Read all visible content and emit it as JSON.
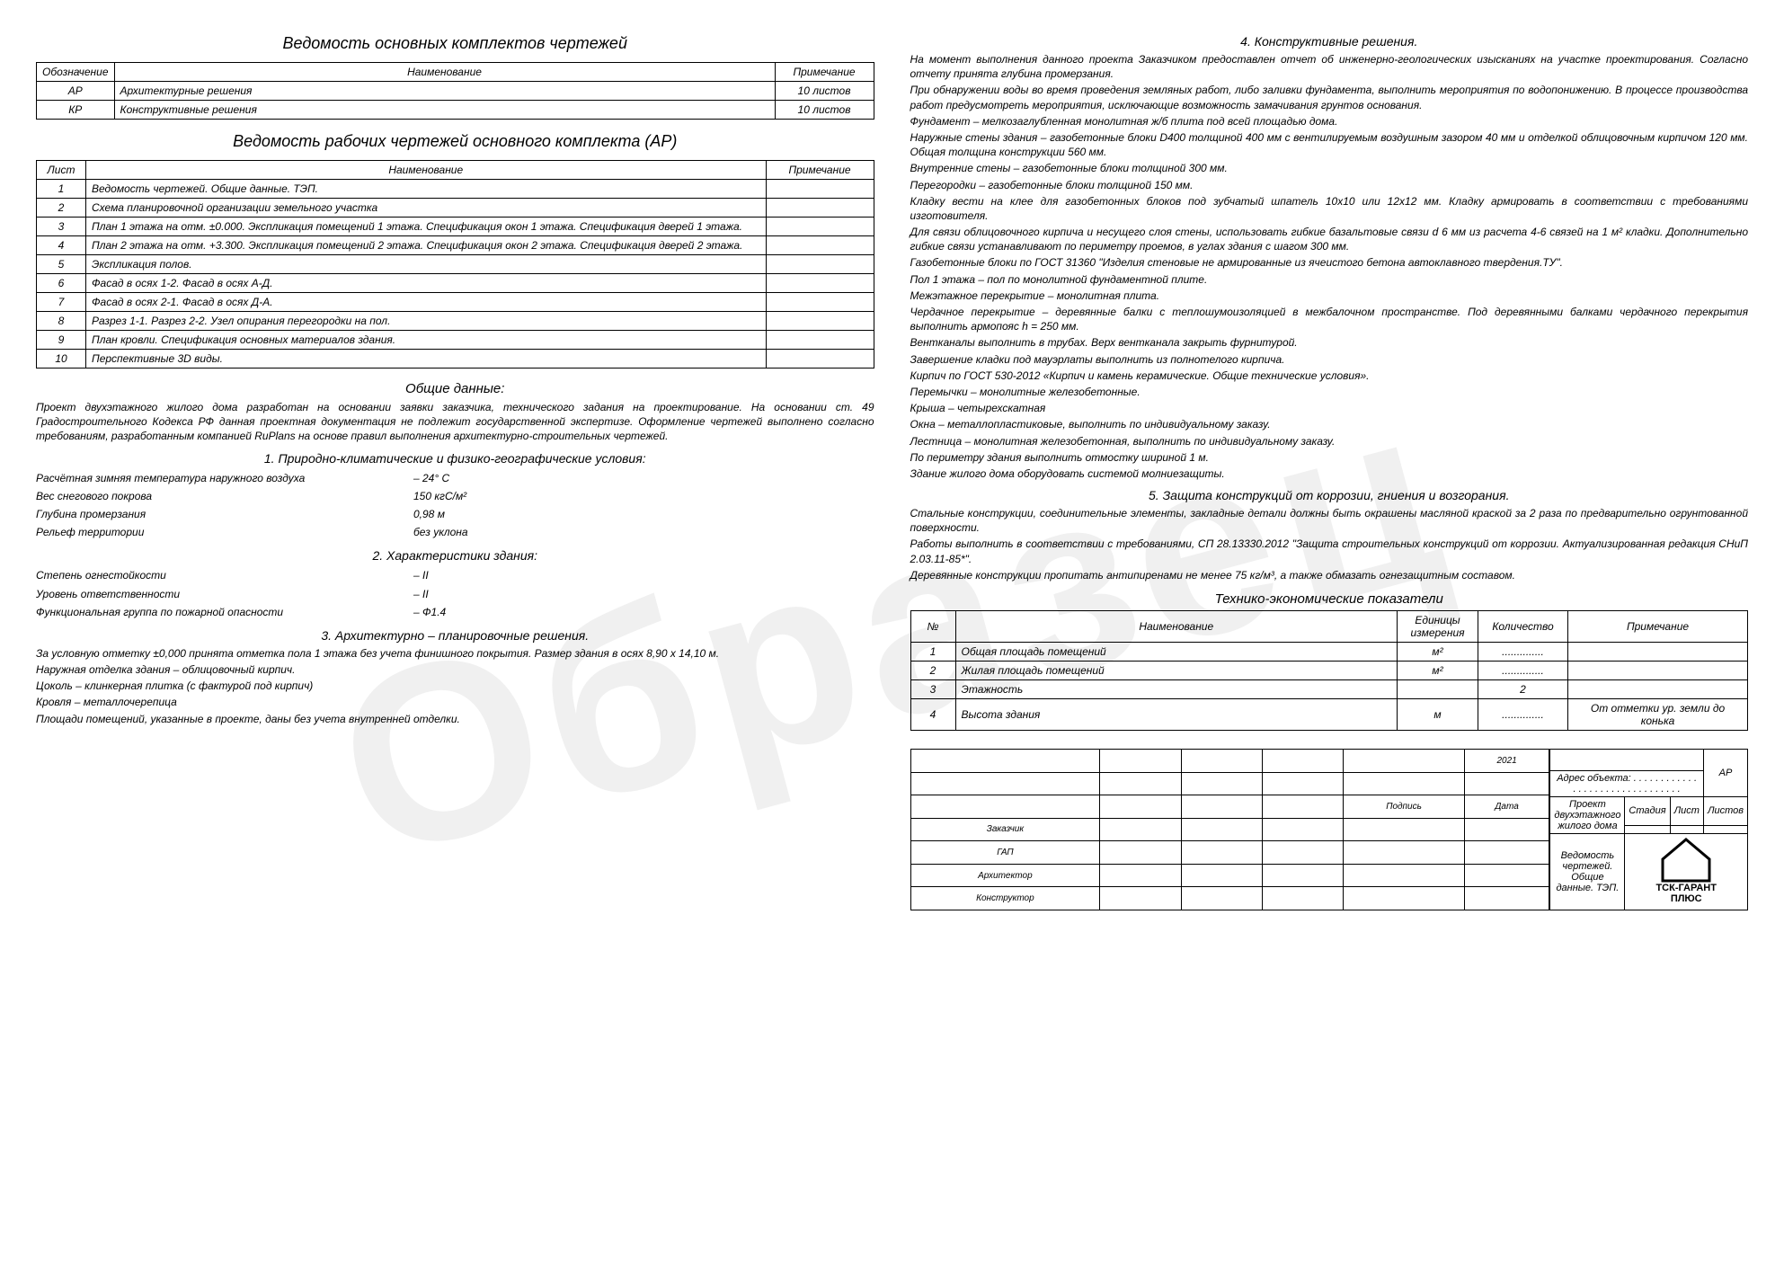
{
  "watermark": "Образец",
  "left": {
    "t1_title": "Ведомость основных комплектов чертежей",
    "t1_headers": [
      "Обозначение",
      "Наименование",
      "Примечание"
    ],
    "t1_rows": [
      [
        "АР",
        "Архитектурные решения",
        "10 листов"
      ],
      [
        "КР",
        "Конструктивные решения",
        "10 листов"
      ]
    ],
    "t2_title": "Ведомость рабочих чертежей основного комплекта (АР)",
    "t2_headers": [
      "Лист",
      "Наименование",
      "Примечание"
    ],
    "t2_rows": [
      [
        "1",
        "Ведомость чертежей. Общие данные. ТЭП.",
        ""
      ],
      [
        "2",
        "Схема планировочной организации земельного участка",
        ""
      ],
      [
        "3",
        "План 1 этажа на отм. ±0.000. Экспликация помещений 1 этажа. Спецификация окон 1 этажа. Спецификация дверей 1 этажа.",
        ""
      ],
      [
        "4",
        "План 2 этажа на отм. +3.300. Экспликация помещений 2 этажа. Спецификация окон 2 этажа. Спецификация дверей 2 этажа.",
        ""
      ],
      [
        "5",
        "Экспликация полов.",
        ""
      ],
      [
        "6",
        "Фасад в осях 1-2. Фасад в осях А-Д.",
        ""
      ],
      [
        "7",
        "Фасад в осях 2-1. Фасад в осях Д-А.",
        ""
      ],
      [
        "8",
        "Разрез 1-1. Разрез 2-2. Узел опирания перегородки на пол.",
        ""
      ],
      [
        "9",
        "План кровли. Спецификация основных материалов здания.",
        ""
      ],
      [
        "10",
        "Перспективные 3D виды.",
        ""
      ]
    ],
    "general_title": "Общие данные:",
    "general_p1": "Проект двухэтажного жилого дома разработан на основании заявки заказчика, технического задания на проектирование. На основании ст. 49 Градостроительного Кодекса РФ данная проектная документация не подлежит государственной экспертизе. Оформление чертежей выполнено согласно требованиям, разработанным компанией RuPlans на основе правил выполнения архитектурно-строительных чертежей.",
    "s1_title": "1. Природно-климатические и физико-географические условия:",
    "s1_items": [
      [
        "Расчётная зимняя температура наружного воздуха",
        "– 24° С"
      ],
      [
        "Вес снегового покрова",
        "150 кгС/м²"
      ],
      [
        "Глубина промерзания",
        "0,98 м"
      ],
      [
        "Рельеф территории",
        "без уклона"
      ]
    ],
    "s2_title": "2. Характеристики здания:",
    "s2_items": [
      [
        "Степень огнестойкости",
        "– II"
      ],
      [
        "Уровень ответственности",
        "– II"
      ],
      [
        "Функциональная группа по пожарной опасности",
        "– Ф1.4"
      ]
    ],
    "s3_title": "3. Архитектурно – планировочные решения.",
    "s3_paras": [
      "За условную отметку ±0,000 принята отметка пола 1 этажа без учета финишного покрытия. Размер здания в осях 8,90 х 14,10 м.",
      "Наружная отделка здания – облицовочный кирпич.",
      "Цоколь – клинкерная плитка (с фактурой под кирпич)",
      "Кровля – металлочерепица",
      "Площади помещений, указанные в проекте, даны без учета внутренней отделки."
    ]
  },
  "right": {
    "s4_title": "4. Конструктивные решения.",
    "s4_paras": [
      "На момент выполнения данного проекта Заказчиком предоставлен отчет об инженерно-геологических изысканиях на участке проектирования. Согласно отчету принята глубина промерзания.",
      "При обнаружении воды во время проведения земляных работ, либо заливки фундамента, выполнить мероприятия по водопонижению. В процессе производства работ предусмотреть мероприятия, исключающие возможность замачивания грунтов основания.",
      "Фундамент – мелкозаглубленная монолитная ж/б плита под всей площадью дома.",
      "Наружные стены здания – газобетонные блоки D400 толщиной 400 мм с вентилируемым воздушным зазором 40 мм и отделкой облицовочным кирпичом 120 мм. Общая толщина конструкции 560 мм.",
      "Внутренние стены – газобетонные блоки толщиной 300 мм.",
      "Перегородки – газобетонные блоки толщиной 150 мм.",
      "Кладку вести на клее для газобетонных блоков под зубчатый шпатель 10х10 или 12х12 мм. Кладку армировать в соответствии с требованиями изготовителя.",
      "Для связи облицовочного кирпича и несущего слоя стены, использовать гибкие базальтовые связи d 6 мм из расчета 4-6 связей на 1 м² кладки. Дополнительно гибкие связи устанавливают по периметру проемов, в углах здания с шагом 300 мм.",
      "Газобетонные блоки по ГОСТ 31360 \"Изделия стеновые не армированные из ячеистого бетона автоклавного твердения.ТУ\".",
      "Пол 1 этажа – пол по монолитной фундаментной плите.",
      "Межэтажное перекрытие – монолитная плита.",
      "Чердачное перекрытие – деревянные балки с теплошумоизоляцией в межбалочном пространстве. Под деревянными балками чердачного перекрытия выполнить армопояс h = 250 мм.",
      "Вентканалы выполнить в трубах. Верх вентканала закрыть фурнитурой.",
      "Завершение кладки под мауэрлаты выполнить из полнотелого кирпича.",
      "Кирпич по ГОСТ 530-2012 «Кирпич и камень керамические. Общие технические условия».",
      "Перемычки – монолитные железобетонные.",
      "Крыша – четырехскатная",
      "Окна – металлопластиковые, выполнить по индивидуальному заказу.",
      "Лестница – монолитная железобетонная, выполнить по индивидуальному заказу.",
      "По периметру здания выполнить отмостку шириной 1 м.",
      "Здание жилого дома оборудовать системой молниезащиты."
    ],
    "s5_title": "5. Защита конструкций от коррозии, гниения и возгорания.",
    "s5_paras": [
      "Стальные конструкции, соединительные элементы, закладные детали должны быть окрашены масляной краской за 2 раза по предварительно огрунтованной поверхности.",
      "Работы выполнить в соответствии с требованиями, СП 28.13330.2012 \"Защита строительных конструкций от коррозии. Актуализированная редакция СНиП 2.03.11-85*\".",
      "Деревянные конструкции пропитать антипиренами не менее 75 кг/м³, а также обмазать огнезащитным составом."
    ],
    "tep_title": "Технико-экономические показатели",
    "tep_headers": [
      "№",
      "Наименование",
      "Единицы измерения",
      "Количество",
      "Примечание"
    ],
    "tep_rows": [
      [
        "1",
        "Общая площадь помещений",
        "м²",
        "..............",
        ""
      ],
      [
        "2",
        "Жилая площадь помещений",
        "м²",
        "..............",
        ""
      ],
      [
        "3",
        "Этажность",
        "",
        "2",
        ""
      ],
      [
        "4",
        "Высота здания",
        "м",
        "..............",
        "От отметки ур. земли до конька"
      ]
    ],
    "stamp": {
      "year": "2021",
      "sign": "Подпись",
      "date": "Дата",
      "roles": [
        "Заказчик",
        "ГАП",
        "Архитектор",
        "Конструктор"
      ],
      "code": "АР",
      "addr_label": "Адрес объекта: . . . . . . . . . . . . . . . . . . . . . . . . . . . . . . . .",
      "project": "Проект двухэтажного жилого дома",
      "sheet_name": "Ведомость чертежей. Общие данные. ТЭП.",
      "h_stage": "Стадия",
      "h_sheet": "Лист",
      "h_sheets": "Листов",
      "logo1": "ТСК-ГАРАНТ",
      "logo2": "ПЛЮС"
    }
  }
}
